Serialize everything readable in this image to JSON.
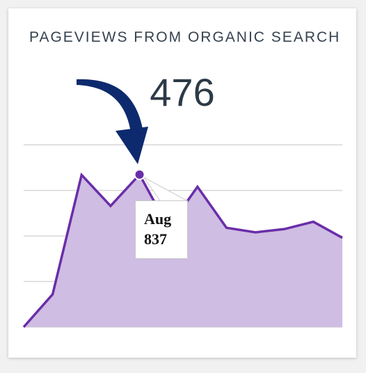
{
  "widget": {
    "title": "PAGEVIEWS FROM ORGANIC SEARCH",
    "metric_value": "476"
  },
  "tooltip": {
    "month": "Aug",
    "value": "837"
  },
  "colors": {
    "line": "#6a2ea8",
    "fill": "#cfbde3",
    "arrow": "#0e2a6e",
    "grid": "#d7d7d7",
    "point": "#6a2ea8"
  },
  "chart_data": {
    "type": "area",
    "title": "PAGEVIEWS FROM ORGANIC SEARCH",
    "xlabel": "",
    "ylabel": "",
    "ylim": [
      0,
      1100
    ],
    "grid": true,
    "highlight": {
      "index": 4,
      "label": "Aug",
      "value": 837
    },
    "series": [
      {
        "values": [
          0,
          180,
          835,
          665,
          837,
          545,
          770,
          545,
          520,
          538,
          578,
          490
        ]
      }
    ]
  }
}
